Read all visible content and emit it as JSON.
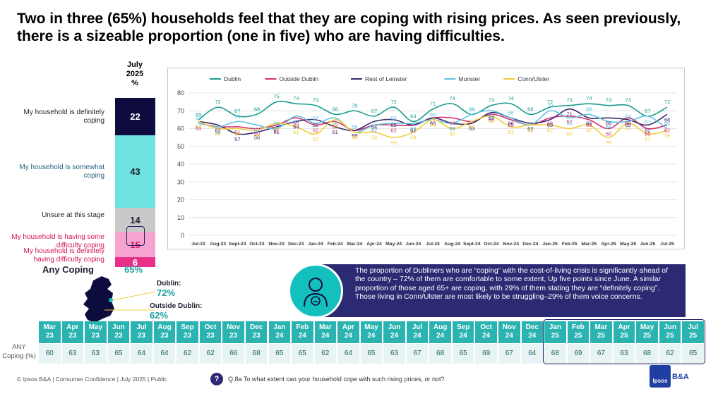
{
  "title": "Two in three (65%) households feel that they are coping with rising prices. As seen previously, there is a sizeable proportion (one in five) who are having difficulties.",
  "bar": {
    "header": [
      "July",
      "2025",
      "%"
    ],
    "segments": [
      {
        "label": "My household is definitely coping",
        "value": 22,
        "color": "#0e0c3e",
        "text_color": "#ffffff",
        "label_color": "#1e1e2e"
      },
      {
        "label": "My household is somewhat coping",
        "value": 43,
        "color": "#6ce3e0",
        "text_color": "#1e1e2e",
        "label_color": "#1e5f7a"
      },
      {
        "label": "Unsure at this stage",
        "value": 14,
        "color": "#c9c9c9",
        "text_color": "#1e1e2e",
        "label_color": "#1e1e2e"
      },
      {
        "label": "My household is having some difficulty coping",
        "value": 15,
        "color": "#f7a3cf",
        "text_color": "#c4145e",
        "label_color": "#d4145e"
      },
      {
        "label": "My household is definitely having difficulty coping",
        "value": 6,
        "color": "#e8308a",
        "text_color": "#ffffff",
        "label_color": "#d4145e"
      }
    ],
    "any_coping_label": "Any Coping",
    "any_coping_value": "65%"
  },
  "regions": {
    "dublin_label": "Dublin:",
    "dublin_value": "72%",
    "outside_label": "Outside Dublin:",
    "outside_value": "62%"
  },
  "callout": "The proportion of Dubliners who are “coping” with the cost-of-living crisis is significantly ahead of the country – 72% of them are comfortable to some extent, Up five points since June. A similar proportion of those aged 65+ are coping, with 29% of them stating they are “definitely coping”. Those living in Conn/Ulster are most likely to be struggling–29% of them voice concerns.",
  "chart_data": {
    "type": "line",
    "x": [
      "Jul-23",
      "Aug-23",
      "Sept-23",
      "Oct-23",
      "Nov-23",
      "Dec-23",
      "Jan-24",
      "Feb-24",
      "Mar-24",
      "Apr-24",
      "May-24",
      "Jun-24",
      "Jul-24",
      "Aug-24",
      "Sept-24",
      "Oct-24",
      "Nov-24",
      "Dec-24",
      "Jan-25",
      "Feb-25",
      "Mar-25",
      "Apr-25",
      "May-25",
      "Jun-25",
      "Jul-25"
    ],
    "ylim": [
      0,
      80
    ],
    "yticks": [
      0,
      10,
      20,
      30,
      40,
      50,
      60,
      70,
      80
    ],
    "legend_position": "top",
    "series": [
      {
        "name": "Dublin",
        "color": "#1a9d8f",
        "values": [
          65,
          72,
          67,
          68,
          75,
          74,
          73,
          68,
          70,
          67,
          72,
          64,
          71,
          74,
          68,
          73,
          74,
          68,
          72,
          73,
          74,
          73,
          73,
          67,
          72
        ]
      },
      {
        "name": "Outside Dublin",
        "color": "#d62f6f",
        "values": [
          63,
          61,
          61,
          60,
          62,
          66,
          62,
          64,
          59,
          62,
          62,
          62,
          66,
          66,
          64,
          68,
          65,
          62,
          66,
          67,
          65,
          60,
          66,
          60,
          62
        ]
      },
      {
        "name": "Rest of Leinster",
        "color": "#3a2b6e",
        "values": [
          64,
          62,
          57,
          58,
          61,
          64,
          65,
          61,
          59,
          64,
          65,
          62,
          66,
          63,
          63,
          69,
          66,
          63,
          65,
          71,
          66,
          66,
          65,
          62,
          68
        ]
      },
      {
        "name": "Munster",
        "color": "#60c3e3",
        "values": [
          63,
          61,
          64,
          62,
          60,
          67,
          63,
          66,
          58,
          62,
          63,
          63,
          65,
          63,
          68,
          70,
          66,
          62,
          70,
          66,
          68,
          64,
          64,
          67,
          60
        ]
      },
      {
        "name": "Conn/Ulster",
        "color": "#f2cb3a",
        "values": [
          64,
          60,
          60,
          59,
          63,
          61,
          57,
          65,
          58,
          58,
          55,
          58,
          65,
          60,
          64,
          67,
          61,
          62,
          62,
          60,
          62,
          55,
          63,
          57,
          59
        ]
      }
    ]
  },
  "table": {
    "row_label": "ANY Coping (%)",
    "months": [
      {
        "m": "Mar",
        "y": "23",
        "v": "60"
      },
      {
        "m": "Apr",
        "y": "23",
        "v": "63"
      },
      {
        "m": "May",
        "y": "23",
        "v": "63"
      },
      {
        "m": "Jun",
        "y": "23",
        "v": "65"
      },
      {
        "m": "Jul",
        "y": "23",
        "v": "64"
      },
      {
        "m": "Aug",
        "y": "23",
        "v": "64"
      },
      {
        "m": "Sep",
        "y": "23",
        "v": "62"
      },
      {
        "m": "Oct",
        "y": "23",
        "v": "62"
      },
      {
        "m": "Nov",
        "y": "23",
        "v": "66"
      },
      {
        "m": "Dec",
        "y": "23",
        "v": "68"
      },
      {
        "m": "Jan",
        "y": "24",
        "v": "65"
      },
      {
        "m": "Feb",
        "y": "24",
        "v": "65"
      },
      {
        "m": "Mar",
        "y": "24",
        "v": "62"
      },
      {
        "m": "Apr",
        "y": "24",
        "v": "64"
      },
      {
        "m": "May",
        "y": "24",
        "v": "65"
      },
      {
        "m": "Jun",
        "y": "24",
        "v": "63"
      },
      {
        "m": "Jul",
        "y": "24",
        "v": "67"
      },
      {
        "m": "Aug",
        "y": "24",
        "v": "68"
      },
      {
        "m": "Sep",
        "y": "24",
        "v": "65"
      },
      {
        "m": "Oct",
        "y": "24",
        "v": "69"
      },
      {
        "m": "Nov",
        "y": "24",
        "v": "67"
      },
      {
        "m": "Dec",
        "y": "24",
        "v": "64"
      },
      {
        "m": "Jan",
        "y": "25",
        "v": "68"
      },
      {
        "m": "Feb",
        "y": "25",
        "v": "69"
      },
      {
        "m": "Mar",
        "y": "25",
        "v": "67"
      },
      {
        "m": "Apr",
        "y": "25",
        "v": "63"
      },
      {
        "m": "May",
        "y": "25",
        "v": "68"
      },
      {
        "m": "Jun",
        "y": "25",
        "v": "62"
      },
      {
        "m": "Jul",
        "y": "25",
        "v": "65"
      }
    ]
  },
  "footer": "© Ipsos B&A | Consumer Confidence | July 2025 | Public",
  "question_icon": "?",
  "question": "Q.8a To what extent can your household cope with such rising prices, or not?",
  "logo_text": "Ipsos",
  "logo_suffix": "B&A"
}
